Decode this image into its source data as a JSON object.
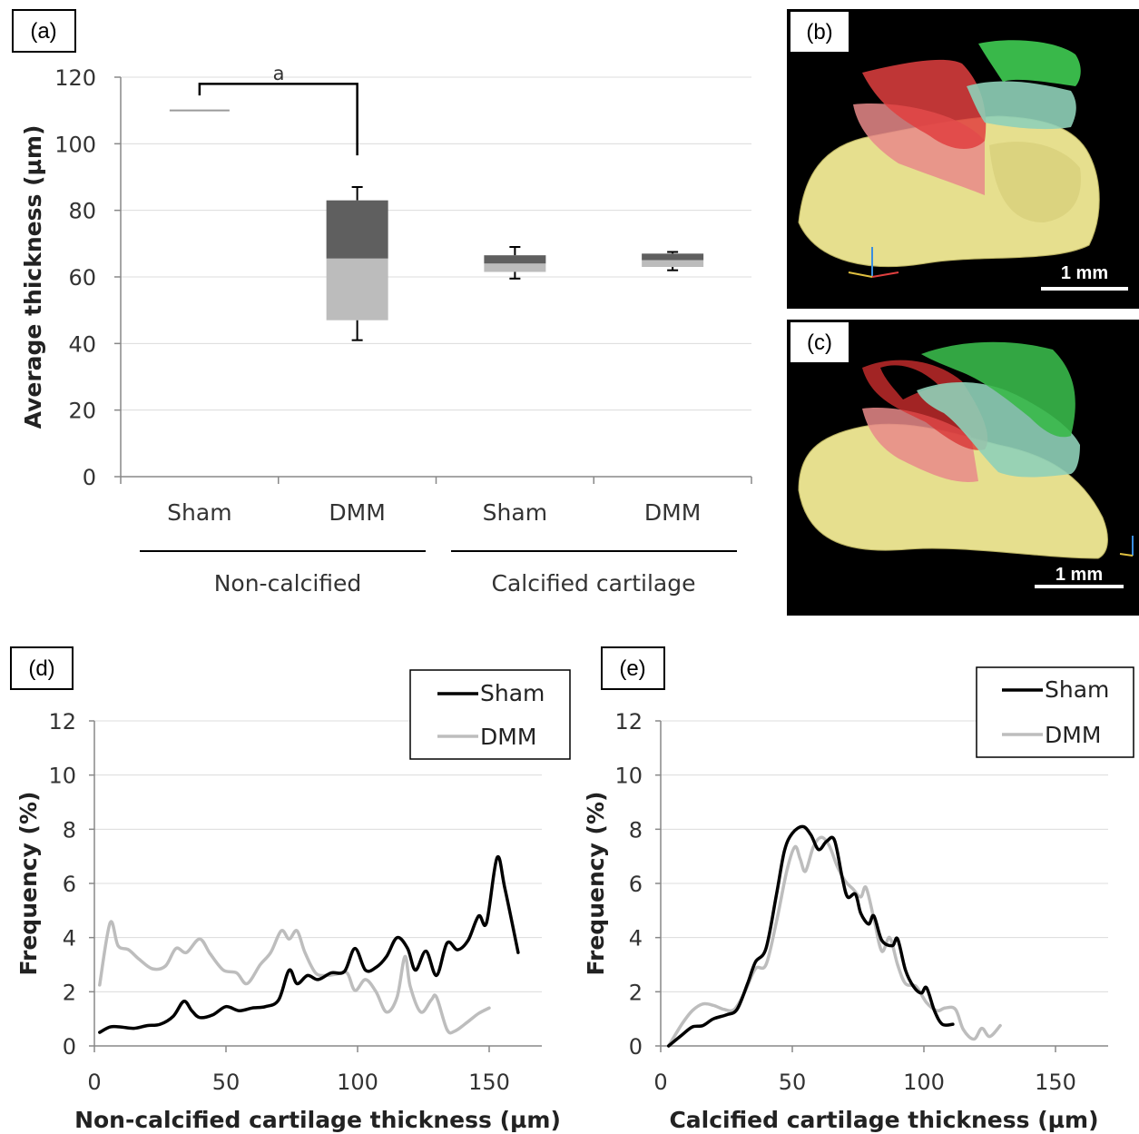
{
  "panels": {
    "a": {
      "label": "(a)"
    },
    "b": {
      "label": "(b)",
      "scale_bar": "1 mm"
    },
    "c": {
      "label": "(c)",
      "scale_bar": "1 mm"
    },
    "d": {
      "label": "(d)"
    },
    "e": {
      "label": "(e)"
    }
  },
  "chart_data": [
    {
      "id": "a",
      "type": "box",
      "ylabel": "Average thickness (µm)",
      "ylim": [
        0,
        120
      ],
      "yticks": [
        0,
        20,
        40,
        60,
        80,
        100,
        120
      ],
      "grid": true,
      "categories": [
        "Sham",
        "DMM",
        "Sham",
        "DMM"
      ],
      "groups": [
        "Non-calcified",
        "Calcified cartilage"
      ],
      "boxes": [
        {
          "category": "Sham",
          "group": "Non-calcified",
          "min": 110,
          "q1": 110,
          "median": 110,
          "q3": 110,
          "max": 110
        },
        {
          "category": "DMM",
          "group": "Non-calcified",
          "min": 41,
          "q1": 47,
          "median": 65.5,
          "q3": 83,
          "max": 87
        },
        {
          "category": "Sham",
          "group": "Calcified cartilage",
          "min": 59.5,
          "q1": 61.5,
          "median": 64,
          "q3": 66.5,
          "max": 69
        },
        {
          "category": "DMM",
          "group": "Calcified cartilage",
          "min": 62,
          "q1": 63,
          "median": 65,
          "q3": 67,
          "max": 67.5
        }
      ],
      "significance": {
        "label": "a",
        "y": 118,
        "from": 0,
        "to": 1
      }
    },
    {
      "id": "d",
      "type": "line",
      "xlabel": "Non-calcified cartilage thickness (µm)",
      "ylabel": "Frequency (%)",
      "xlim": [
        0,
        170
      ],
      "ylim": [
        0,
        12
      ],
      "xticks": [
        0,
        50,
        100,
        150
      ],
      "yticks": [
        0,
        2,
        4,
        6,
        8,
        10,
        12
      ],
      "grid": true,
      "legend": "top-right",
      "series": [
        {
          "name": "Sham",
          "color": "#000000",
          "points": [
            [
              2,
              0.5
            ],
            [
              6,
              0.7
            ],
            [
              10,
              0.7
            ],
            [
              15,
              0.65
            ],
            [
              20,
              0.75
            ],
            [
              25,
              0.8
            ],
            [
              30,
              1.1
            ],
            [
              34,
              1.65
            ],
            [
              37,
              1.3
            ],
            [
              40,
              1.05
            ],
            [
              45,
              1.15
            ],
            [
              50,
              1.45
            ],
            [
              55,
              1.3
            ],
            [
              60,
              1.4
            ],
            [
              65,
              1.45
            ],
            [
              70,
              1.7
            ],
            [
              74,
              2.8
            ],
            [
              77,
              2.3
            ],
            [
              81,
              2.6
            ],
            [
              85,
              2.45
            ],
            [
              90,
              2.7
            ],
            [
              95,
              2.75
            ],
            [
              99,
              3.6
            ],
            [
              103,
              2.8
            ],
            [
              107,
              2.9
            ],
            [
              111,
              3.3
            ],
            [
              115,
              4.0
            ],
            [
              119,
              3.6
            ],
            [
              122,
              2.8
            ],
            [
              126,
              3.5
            ],
            [
              130,
              2.6
            ],
            [
              134,
              3.8
            ],
            [
              138,
              3.55
            ],
            [
              142,
              3.9
            ],
            [
              146,
              4.8
            ],
            [
              149,
              4.55
            ],
            [
              153,
              6.95
            ],
            [
              156,
              5.8
            ],
            [
              161,
              3.45
            ]
          ]
        },
        {
          "name": "DMM",
          "color": "#bdbdbd",
          "points": [
            [
              2,
              2.25
            ],
            [
              6,
              4.55
            ],
            [
              9,
              3.7
            ],
            [
              13,
              3.55
            ],
            [
              17,
              3.2
            ],
            [
              22,
              2.85
            ],
            [
              27,
              2.95
            ],
            [
              31,
              3.6
            ],
            [
              35,
              3.45
            ],
            [
              40,
              3.95
            ],
            [
              44,
              3.4
            ],
            [
              49,
              2.8
            ],
            [
              54,
              2.7
            ],
            [
              58,
              2.3
            ],
            [
              63,
              3.0
            ],
            [
              67,
              3.45
            ],
            [
              71,
              4.25
            ],
            [
              74,
              3.95
            ],
            [
              77,
              4.25
            ],
            [
              80,
              3.45
            ],
            [
              84,
              2.7
            ],
            [
              88,
              2.6
            ],
            [
              92,
              2.65
            ],
            [
              96,
              2.7
            ],
            [
              99,
              2.05
            ],
            [
              103,
              2.45
            ],
            [
              107,
              2.0
            ],
            [
              111,
              1.25
            ],
            [
              115,
              1.8
            ],
            [
              118,
              3.3
            ],
            [
              120,
              2.2
            ],
            [
              124,
              1.25
            ],
            [
              128,
              1.7
            ],
            [
              130,
              1.8
            ],
            [
              134,
              0.6
            ],
            [
              137,
              0.55
            ],
            [
              142,
              0.9
            ],
            [
              146,
              1.2
            ],
            [
              150,
              1.4
            ]
          ]
        }
      ]
    },
    {
      "id": "e",
      "type": "line",
      "xlabel": "Calcified cartilage thickness (µm)",
      "ylabel": "Frequency (%)",
      "xlim": [
        0,
        170
      ],
      "ylim": [
        0,
        12
      ],
      "xticks": [
        0,
        50,
        100,
        150
      ],
      "yticks": [
        0,
        2,
        4,
        6,
        8,
        10,
        12
      ],
      "grid": true,
      "legend": "top-right",
      "series": [
        {
          "name": "Sham",
          "color": "#000000",
          "points": [
            [
              3,
              0
            ],
            [
              8,
              0.4
            ],
            [
              12,
              0.7
            ],
            [
              16,
              0.75
            ],
            [
              20,
              1.0
            ],
            [
              25,
              1.15
            ],
            [
              29,
              1.35
            ],
            [
              33,
              2.3
            ],
            [
              36,
              3.1
            ],
            [
              40,
              3.6
            ],
            [
              44,
              5.6
            ],
            [
              47,
              7.2
            ],
            [
              50,
              7.85
            ],
            [
              54,
              8.1
            ],
            [
              57,
              7.8
            ],
            [
              60,
              7.25
            ],
            [
              63,
              7.55
            ],
            [
              66,
              7.6
            ],
            [
              69,
              6.2
            ],
            [
              71,
              5.5
            ],
            [
              74,
              5.6
            ],
            [
              76,
              4.9
            ],
            [
              79,
              4.5
            ],
            [
              81,
              4.8
            ],
            [
              84,
              3.9
            ],
            [
              88,
              3.7
            ],
            [
              90,
              3.95
            ],
            [
              93,
              2.8
            ],
            [
              96,
              2.2
            ],
            [
              99,
              1.95
            ],
            [
              101,
              2.15
            ],
            [
              104,
              1.3
            ],
            [
              107,
              0.8
            ],
            [
              111,
              0.8
            ]
          ]
        },
        {
          "name": "DMM",
          "color": "#bdbdbd",
          "points": [
            [
              3,
              0
            ],
            [
              8,
              0.8
            ],
            [
              12,
              1.3
            ],
            [
              16,
              1.55
            ],
            [
              20,
              1.5
            ],
            [
              24,
              1.35
            ],
            [
              28,
              1.35
            ],
            [
              32,
              2.0
            ],
            [
              36,
              2.85
            ],
            [
              40,
              3.0
            ],
            [
              44,
              4.6
            ],
            [
              48,
              6.5
            ],
            [
              51,
              7.35
            ],
            [
              53,
              6.9
            ],
            [
              55,
              6.45
            ],
            [
              58,
              7.35
            ],
            [
              61,
              7.7
            ],
            [
              64,
              7.4
            ],
            [
              67,
              6.65
            ],
            [
              70,
              6.1
            ],
            [
              73,
              5.8
            ],
            [
              76,
              5.5
            ],
            [
              78,
              5.85
            ],
            [
              81,
              4.7
            ],
            [
              84,
              3.5
            ],
            [
              87,
              4.0
            ],
            [
              90,
              3.0
            ],
            [
              93,
              2.3
            ],
            [
              97,
              2.2
            ],
            [
              101,
              1.6
            ],
            [
              105,
              1.3
            ],
            [
              108,
              1.4
            ],
            [
              112,
              1.35
            ],
            [
              115,
              0.6
            ],
            [
              119,
              0.25
            ],
            [
              122,
              0.65
            ],
            [
              125,
              0.35
            ],
            [
              129,
              0.75
            ]
          ]
        }
      ]
    }
  ]
}
